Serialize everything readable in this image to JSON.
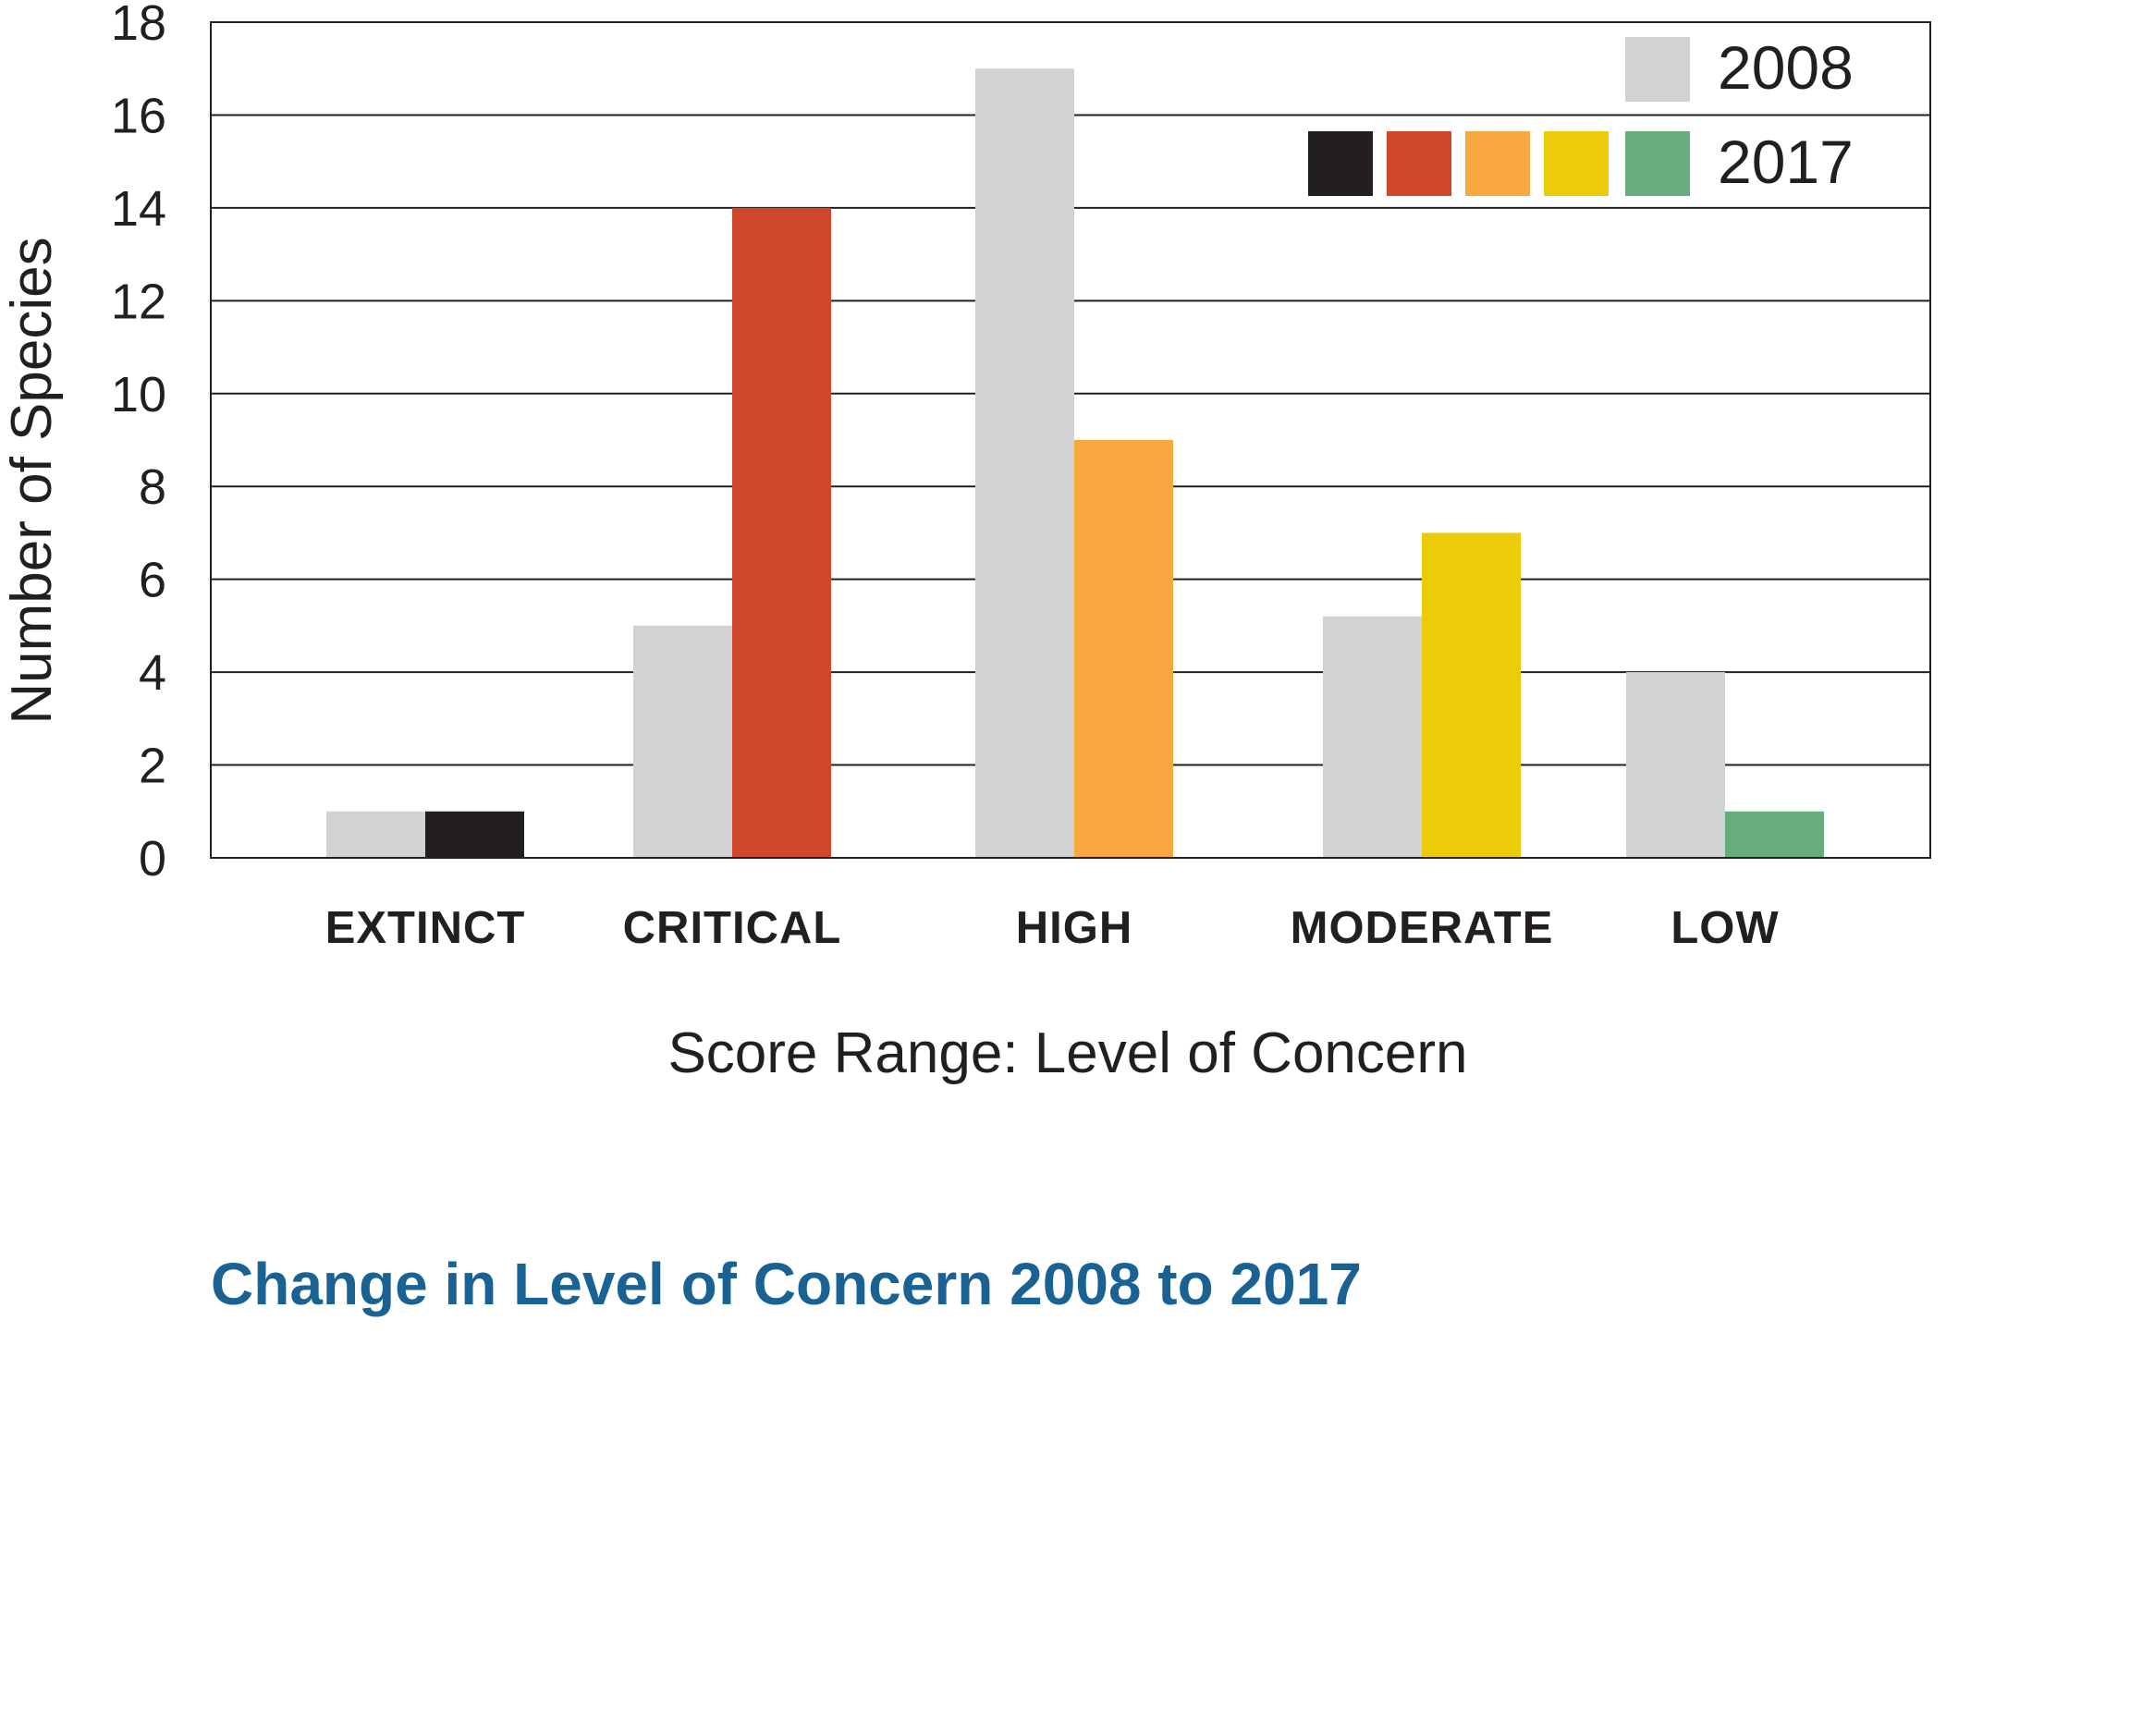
{
  "caption": "Change in Level of Concern 2008 to 2017",
  "chart_data": {
    "type": "bar",
    "categories": [
      "EXTINCT",
      "CRITICAL",
      "HIGH",
      "MODERATE",
      "LOW"
    ],
    "series": [
      {
        "name": "2008",
        "values": [
          1,
          5,
          17,
          5.2,
          4
        ],
        "colors": [
          "#d1d2d4",
          "#d1d2d4",
          "#d1d2d4",
          "#d1d2d4",
          "#d1d2d4"
        ]
      },
      {
        "name": "2017",
        "values": [
          1,
          14,
          9,
          7,
          1
        ],
        "colors": [
          "#231f20",
          "#cf472b",
          "#f8a63f",
          "#eccb0b",
          "#68ab7c"
        ]
      }
    ],
    "xlabel": "Score Range: Level of Concern",
    "ylabel": "Number of Species",
    "ylim": [
      0,
      18
    ],
    "yticks": [
      0,
      2,
      4,
      6,
      8,
      10,
      12,
      14,
      16,
      18
    ],
    "grid": true,
    "legend_position": "top-right",
    "legend": [
      {
        "label": "2008",
        "colors": [
          "#d1d2d4"
        ]
      },
      {
        "label": "2017",
        "colors": [
          "#231f20",
          "#cf472b",
          "#f8a63f",
          "#eccb0b",
          "#68ab7c"
        ]
      }
    ]
  }
}
